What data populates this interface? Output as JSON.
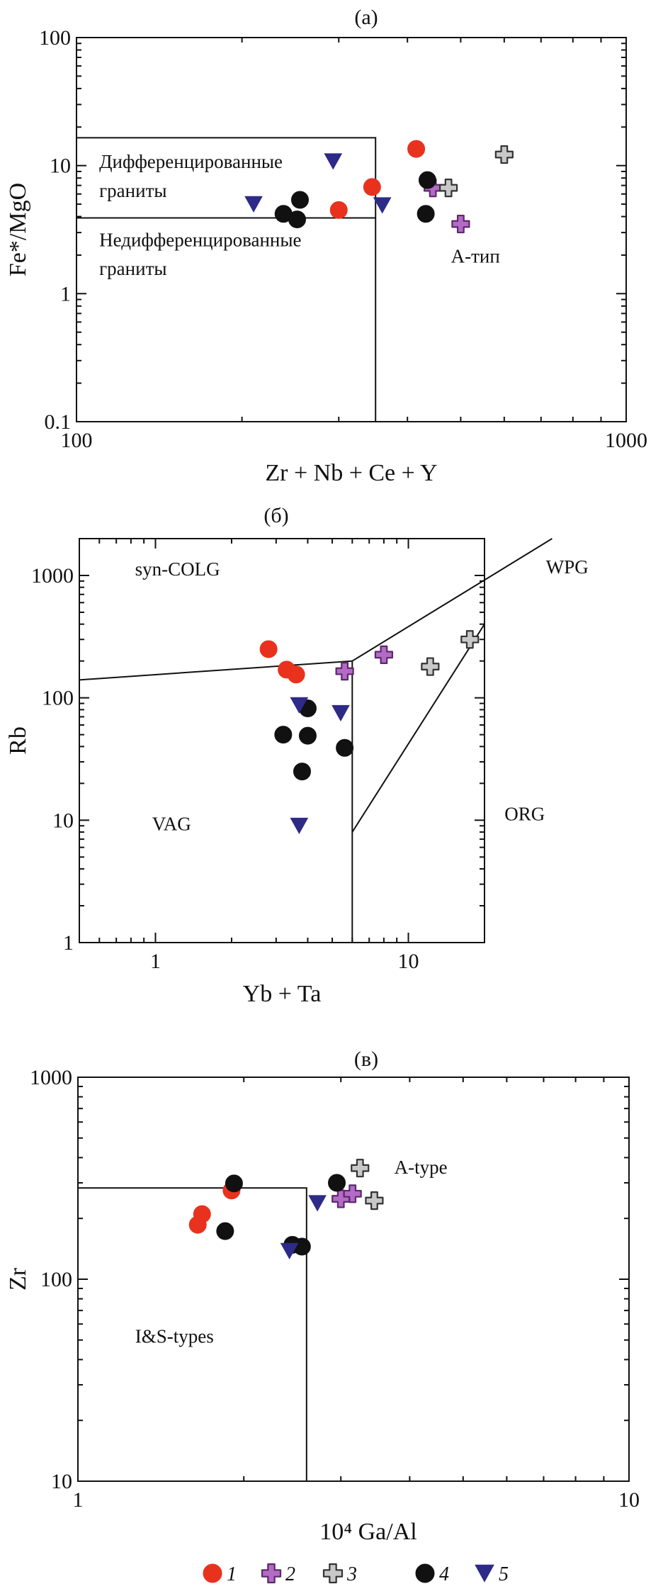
{
  "styles": {
    "1": {
      "shape": "circle",
      "fill": "#e8321e",
      "stroke": "#e8321e",
      "label": "1"
    },
    "2": {
      "shape": "plus",
      "fill": "#b56ac7",
      "stroke": "#5a2a6a",
      "label": "2"
    },
    "3": {
      "shape": "plus",
      "fill": "#c8c8c8",
      "stroke": "#333333",
      "label": "3"
    },
    "4": {
      "shape": "circle",
      "fill": "#111111",
      "stroke": "#111111",
      "label": "4"
    },
    "5": {
      "shape": "triangle-down",
      "fill": "#2e2a88",
      "stroke": "#2e2a88",
      "label": "5"
    }
  },
  "legend_order": [
    "1",
    "2",
    "3",
    "4",
    "5"
  ],
  "chart_data": [
    {
      "id": "a",
      "type": "scatter",
      "title": "(а)",
      "xlabel": "Zr + Nb + Ce + Y",
      "ylabel": "Fe*/MgO",
      "xscale": "log",
      "yscale": "log",
      "xlim": [
        100,
        1000
      ],
      "ylim": [
        0.1,
        100
      ],
      "xticks": [
        {
          "v": 100,
          "label": "100"
        },
        {
          "v": 1000,
          "label": "1000"
        }
      ],
      "yticks": [
        {
          "v": 0.1,
          "label": "0.1"
        },
        {
          "v": 1,
          "label": "1"
        },
        {
          "v": 10,
          "label": "10"
        },
        {
          "v": 100,
          "label": "100"
        }
      ],
      "boundaries": [
        [
          [
            100,
            16.5
          ],
          [
            350,
            16.5
          ],
          [
            350,
            0.1
          ]
        ],
        [
          [
            100,
            3.9
          ],
          [
            350,
            3.9
          ]
        ]
      ],
      "annotations": [
        {
          "text": "Дифференцированные",
          "x": 110,
          "y": 9.6
        },
        {
          "text": "граниты",
          "x": 110,
          "y": 5.7
        },
        {
          "text": "Недифференцированные",
          "x": 110,
          "y": 2.35
        },
        {
          "text": "граниты",
          "x": 110,
          "y": 1.4
        },
        {
          "text": "А-тип",
          "x": 480,
          "y": 1.75
        }
      ],
      "points": [
        {
          "s": "1",
          "x": 300,
          "y": 4.5
        },
        {
          "s": "1",
          "x": 345,
          "y": 6.8
        },
        {
          "s": "1",
          "x": 415,
          "y": 13.5
        },
        {
          "s": "2",
          "x": 445,
          "y": 6.7
        },
        {
          "s": "2",
          "x": 500,
          "y": 3.5
        },
        {
          "s": "3",
          "x": 475,
          "y": 6.7
        },
        {
          "s": "3",
          "x": 600,
          "y": 12.2
        },
        {
          "s": "4",
          "x": 238,
          "y": 4.2
        },
        {
          "s": "4",
          "x": 252,
          "y": 3.8
        },
        {
          "s": "4",
          "x": 255,
          "y": 5.4
        },
        {
          "s": "4",
          "x": 435,
          "y": 7.7
        },
        {
          "s": "4",
          "x": 432,
          "y": 4.2
        },
        {
          "s": "5",
          "x": 210,
          "y": 5.0
        },
        {
          "s": "5",
          "x": 293,
          "y": 10.8
        },
        {
          "s": "5",
          "x": 360,
          "y": 4.9
        }
      ]
    },
    {
      "id": "b",
      "type": "scatter",
      "title": "(б)",
      "xlabel": "Yb + Ta",
      "ylabel": "Rb",
      "xscale": "log",
      "yscale": "log",
      "xlim": [
        0.5,
        20
      ],
      "ylim": [
        1,
        2000
      ],
      "xticks": [
        {
          "v": 1,
          "label": "1"
        },
        {
          "v": 10,
          "label": "10"
        }
      ],
      "yticks": [
        {
          "v": 1,
          "label": "1"
        },
        {
          "v": 10,
          "label": "10"
        },
        {
          "v": 100,
          "label": "100"
        },
        {
          "v": 1000,
          "label": "1000"
        }
      ],
      "boundaries": [
        [
          [
            0.5,
            140
          ],
          [
            6,
            200
          ]
        ],
        [
          [
            6,
            200
          ],
          [
            37,
            2000
          ]
        ],
        [
          [
            6,
            200
          ],
          [
            6,
            1
          ]
        ],
        [
          [
            6,
            8
          ],
          [
            20,
            400
          ]
        ]
      ],
      "annotations": [
        {
          "text": "syn-COLG",
          "x": 0.83,
          "y": 1000
        },
        {
          "text": "WPG",
          "x": 35,
          "y": 1040
        },
        {
          "text": "VAG",
          "x": 0.97,
          "y": 8.3
        },
        {
          "text": "ORG",
          "x": 24,
          "y": 10
        }
      ],
      "points": [
        {
          "s": "1",
          "x": 2.8,
          "y": 250
        },
        {
          "s": "1",
          "x": 3.3,
          "y": 170
        },
        {
          "s": "1",
          "x": 3.6,
          "y": 155
        },
        {
          "s": "2",
          "x": 5.6,
          "y": 165
        },
        {
          "s": "2",
          "x": 8.0,
          "y": 225
        },
        {
          "s": "3",
          "x": 12.2,
          "y": 180
        },
        {
          "s": "3",
          "x": 17.5,
          "y": 300
        },
        {
          "s": "4",
          "x": 3.2,
          "y": 50
        },
        {
          "s": "4",
          "x": 4.0,
          "y": 82
        },
        {
          "s": "4",
          "x": 4.0,
          "y": 49
        },
        {
          "s": "4",
          "x": 3.8,
          "y": 25
        },
        {
          "s": "4",
          "x": 5.6,
          "y": 39
        },
        {
          "s": "5",
          "x": 3.7,
          "y": 87
        },
        {
          "s": "5",
          "x": 5.4,
          "y": 75
        },
        {
          "s": "5",
          "x": 3.7,
          "y": 9
        }
      ]
    },
    {
      "id": "c",
      "type": "scatter",
      "title": "(в)",
      "xlabel": "10⁴ Ga/Al",
      "ylabel": "Zr",
      "xscale": "log",
      "yscale": "log",
      "xlim": [
        1,
        10
      ],
      "ylim": [
        10,
        1000
      ],
      "xticks": [
        {
          "v": 1,
          "label": "1"
        },
        {
          "v": 10,
          "label": "10"
        }
      ],
      "yticks": [
        {
          "v": 10,
          "label": "10"
        },
        {
          "v": 100,
          "label": "100"
        },
        {
          "v": 1000,
          "label": "1000"
        }
      ],
      "boundaries": [
        [
          [
            1,
            283
          ],
          [
            2.6,
            283
          ],
          [
            2.6,
            10
          ]
        ]
      ],
      "annotations": [
        {
          "text": "A-type",
          "x": 3.75,
          "y": 333
        },
        {
          "text": "I&S-types",
          "x": 1.27,
          "y": 48.5
        }
      ],
      "points": [
        {
          "s": "1",
          "x": 1.68,
          "y": 210
        },
        {
          "s": "1",
          "x": 1.65,
          "y": 186
        },
        {
          "s": "1",
          "x": 1.9,
          "y": 275
        },
        {
          "s": "2",
          "x": 3.0,
          "y": 250
        },
        {
          "s": "2",
          "x": 3.15,
          "y": 265
        },
        {
          "s": "3",
          "x": 3.25,
          "y": 355
        },
        {
          "s": "3",
          "x": 3.45,
          "y": 245
        },
        {
          "s": "4",
          "x": 1.92,
          "y": 298
        },
        {
          "s": "4",
          "x": 1.85,
          "y": 173
        },
        {
          "s": "4",
          "x": 2.45,
          "y": 148
        },
        {
          "s": "4",
          "x": 2.55,
          "y": 145
        },
        {
          "s": "4",
          "x": 2.95,
          "y": 300
        },
        {
          "s": "5",
          "x": 2.42,
          "y": 138
        },
        {
          "s": "5",
          "x": 2.72,
          "y": 238
        }
      ]
    }
  ]
}
